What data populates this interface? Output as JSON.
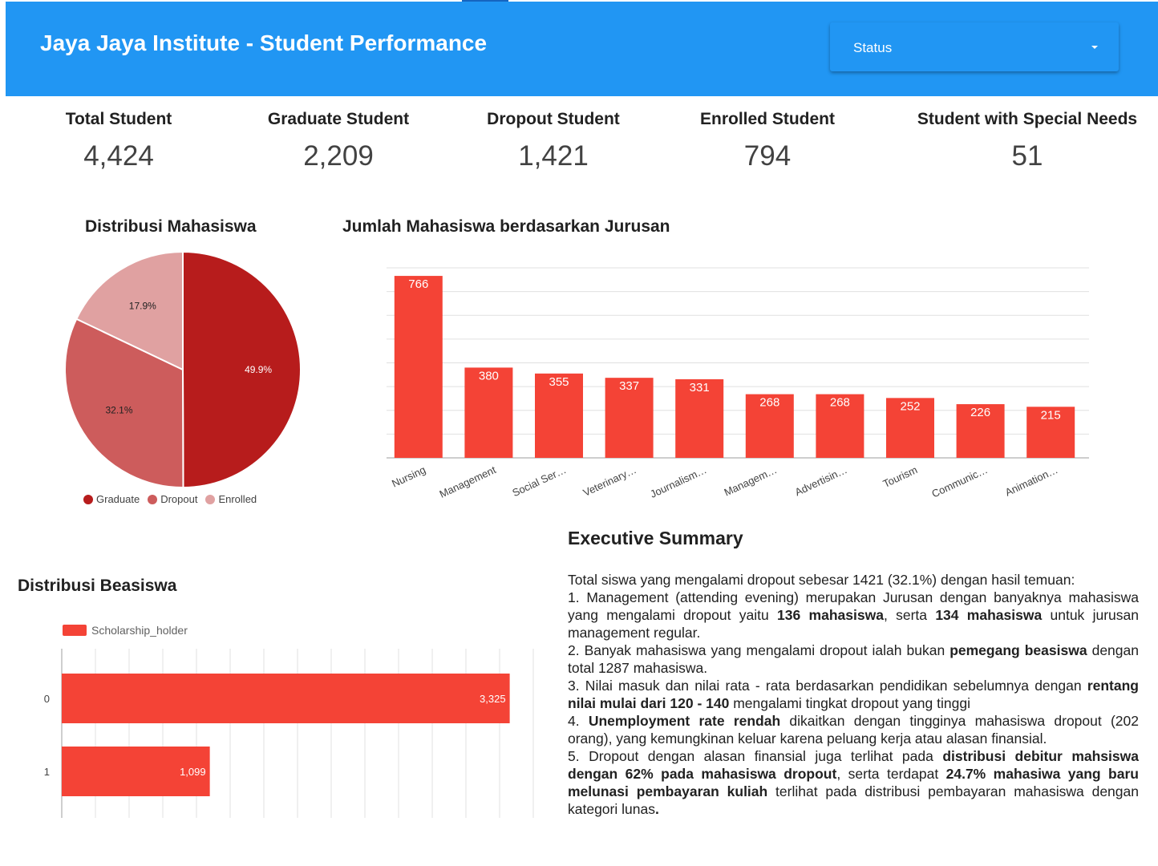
{
  "header": {
    "title": "Jaya Jaya Institute - Student Performance",
    "status_dropdown_label": "Status"
  },
  "kpis": [
    {
      "label": "Total Student",
      "value": "4,424"
    },
    {
      "label": "Graduate Student",
      "value": "2,209"
    },
    {
      "label": "Dropout Student",
      "value": "1,421"
    },
    {
      "label": "Enrolled Student",
      "value": "794"
    },
    {
      "label": "Student with Special Needs",
      "value": "51"
    }
  ],
  "pie": {
    "title": "Distribusi Mahasiswa",
    "legend": [
      "Graduate",
      "Dropout",
      "Enrolled"
    ]
  },
  "bar": {
    "title": "Jumlah Mahasiswa berdasarkan Jurusan"
  },
  "scholarship": {
    "title": "Distribusi Beasiswa",
    "legend": "Scholarship_holder"
  },
  "summary": {
    "title": "Executive Summary",
    "intro": "Total siswa yang mengalami dropout sebesar 1421 (32.1%) dengan hasil temuan:",
    "p1_a": "1. Management (attending evening) merupakan Jurusan dengan banyaknya mahasiswa yang mengalami dropout yaitu ",
    "p1_b": "136 mahasiswa",
    "p1_c": ", serta ",
    "p1_d": "134 mahasiswa",
    "p1_e": " untuk jurusan management regular.",
    "p2_a": "2. Banyak mahasiswa yang mengalami dropout ialah bukan ",
    "p2_b": "pemegang beasiswa",
    "p2_c": " dengan total 1287 mahasiswa.",
    "p3_a": "3. Nilai masuk dan nilai rata - rata berdasarkan pendidikan sebelumnya dengan ",
    "p3_b": "rentang nilai mulai dari 120 - 140",
    "p3_c": " mengalami tingkat dropout yang tinggi",
    "p4_a": "4. ",
    "p4_b": "Unemployment rate rendah",
    "p4_c": " dikaitkan dengan tingginya mahasiswa dropout (202 orang), yang kemungkinan keluar karena peluang kerja atau alasan finansial.",
    "p5_a": "5. Dropout dengan alasan finansial juga terlihat pada ",
    "p5_b": "distribusi debitur mahsiswa dengan 62% pada mahasiswa dropout",
    "p5_c": ", serta terdapat ",
    "p5_d": "24.7% mahasiwa yang baru melunasi pembayaran kuliah",
    "p5_e": " terlihat pada distribusi pembayaran mahasiswa dengan kategori lunas",
    "p5_f": "."
  },
  "colors": {
    "header_bg": "#2196f3",
    "bar": "#f44336",
    "pie_graduate": "#b71c1c",
    "pie_dropout": "#cd5c5c",
    "pie_enrolled": "#e0a1a1"
  },
  "chart_data": [
    {
      "type": "pie",
      "title": "Distribusi Mahasiswa",
      "categories": [
        "Graduate",
        "Dropout",
        "Enrolled"
      ],
      "values": [
        49.9,
        32.1,
        17.9
      ],
      "labels": [
        "49.9%",
        "32.1%",
        "17.9%"
      ],
      "legend": "bottom"
    },
    {
      "type": "bar",
      "title": "Jumlah Mahasiswa berdasarkan Jurusan",
      "categories": [
        "Nursing",
        "Management",
        "Social Ser…",
        "Veterinary…",
        "Journalism…",
        "Managem…",
        "Advertisin…",
        "Tourism",
        "Communic…",
        "Animation…"
      ],
      "values": [
        766,
        380,
        355,
        337,
        331,
        268,
        268,
        252,
        226,
        215
      ],
      "ylim": [
        0,
        800
      ],
      "grid": true
    },
    {
      "type": "bar",
      "orientation": "horizontal",
      "title": "Distribusi Beasiswa",
      "categories": [
        "0",
        "1"
      ],
      "series": [
        {
          "name": "Scholarship_holder",
          "values": [
            3325,
            1099
          ]
        }
      ],
      "value_labels": [
        "3,325",
        "1,099"
      ],
      "xlim": [
        0,
        3500
      ],
      "legend": "top-left",
      "grid": true
    }
  ]
}
